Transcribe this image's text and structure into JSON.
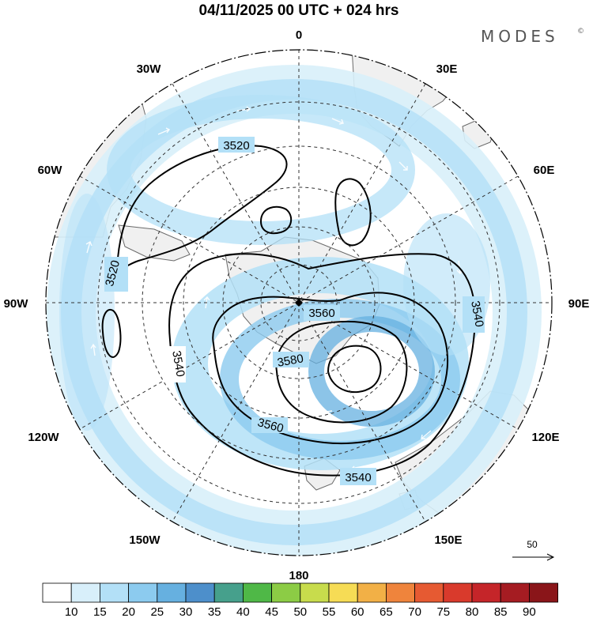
{
  "header": {
    "title": "04/11/2025  00 UTC  + 024 hrs",
    "brand": "MODES",
    "brand_mark": "©"
  },
  "map": {
    "projection": "polar-stereographic-south",
    "center_marker": "south-pole-dot",
    "longitude_labels": {
      "top": "0",
      "top_left": "30W",
      "top_right": "30E",
      "upper_left": "60W",
      "upper_right": "60E",
      "left": "90W",
      "right": "90E",
      "lower_left": "120W",
      "lower_right": "120E",
      "bottom_left": "150W",
      "bottom_right": "150E",
      "bottom": "180"
    },
    "contour_labels": [
      "3520",
      "3520",
      "3540",
      "3540",
      "3540",
      "3560",
      "3560",
      "3580"
    ],
    "wind_reference": {
      "value": "50",
      "icon": "arrow-right-icon"
    }
  },
  "legend": {
    "tick_labels": [
      "10",
      "15",
      "20",
      "25",
      "30",
      "35",
      "40",
      "45",
      "50",
      "55",
      "60",
      "65",
      "70",
      "75",
      "80",
      "85",
      "90"
    ],
    "colors": [
      "#ffffff",
      "#d8effa",
      "#b3e0f7",
      "#8ccbef",
      "#66b0e0",
      "#4d8fcb",
      "#46a08c",
      "#4fb847",
      "#8ccc45",
      "#c8dc4c",
      "#f6dc55",
      "#f2b046",
      "#ef843c",
      "#e65a32",
      "#d93a2c",
      "#c52529",
      "#a51c22",
      "#8a1519"
    ]
  },
  "colors": {
    "land": "#f0f0f0",
    "coast": "#6a6a6a",
    "grid": "#333333",
    "contour": "#000000",
    "wind_light": "#d8effa",
    "wind_mid": "#b3e0f7",
    "wind_strong": "#8ccbef",
    "wind_core": "#66b0e0"
  }
}
